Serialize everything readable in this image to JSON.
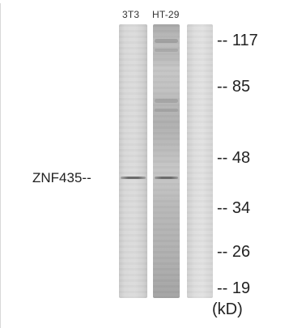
{
  "lanes": [
    {
      "label": "3T3"
    },
    {
      "label": "HT-29"
    },
    {
      "label": ""
    }
  ],
  "markers": [
    {
      "text": "-- 117"
    },
    {
      "text": "-- 85"
    },
    {
      "text": "-- 48"
    },
    {
      "text": "-- 34"
    },
    {
      "text": "-- 26"
    },
    {
      "text": "-- 19"
    }
  ],
  "protein_label": "ZNF435--",
  "unit_label": "(kD)"
}
